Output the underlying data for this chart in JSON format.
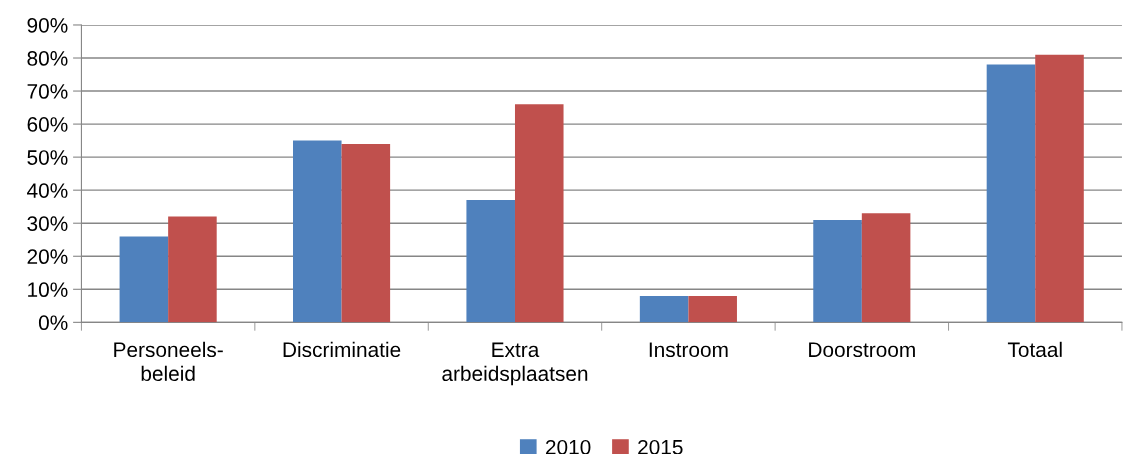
{
  "chart_data": {
    "type": "bar",
    "categories": [
      "Personeels-\nbeleid",
      "Discriminatie",
      "Extra\narbeidsplaatsen",
      "Instroom",
      "Doorstroom",
      "Totaal"
    ],
    "series": [
      {
        "name": "2010",
        "color": "#4f81bd",
        "values": [
          26,
          55,
          37,
          8,
          31,
          78
        ]
      },
      {
        "name": "2015",
        "color": "#c0504d",
        "values": [
          32,
          54,
          66,
          8,
          33,
          81
        ]
      }
    ],
    "ylim": [
      0,
      90
    ],
    "yticks": [
      {
        "value": 0,
        "label": "0%"
      },
      {
        "value": 10,
        "label": "10%"
      },
      {
        "value": 20,
        "label": "20%"
      },
      {
        "value": 30,
        "label": "30%"
      },
      {
        "value": 40,
        "label": "40%"
      },
      {
        "value": 50,
        "label": "50%"
      },
      {
        "value": 60,
        "label": "60%"
      },
      {
        "value": 70,
        "label": "70%"
      },
      {
        "value": 80,
        "label": "80%"
      },
      {
        "value": 90,
        "label": "90%"
      }
    ],
    "grid": "y",
    "legend": "bottom"
  }
}
